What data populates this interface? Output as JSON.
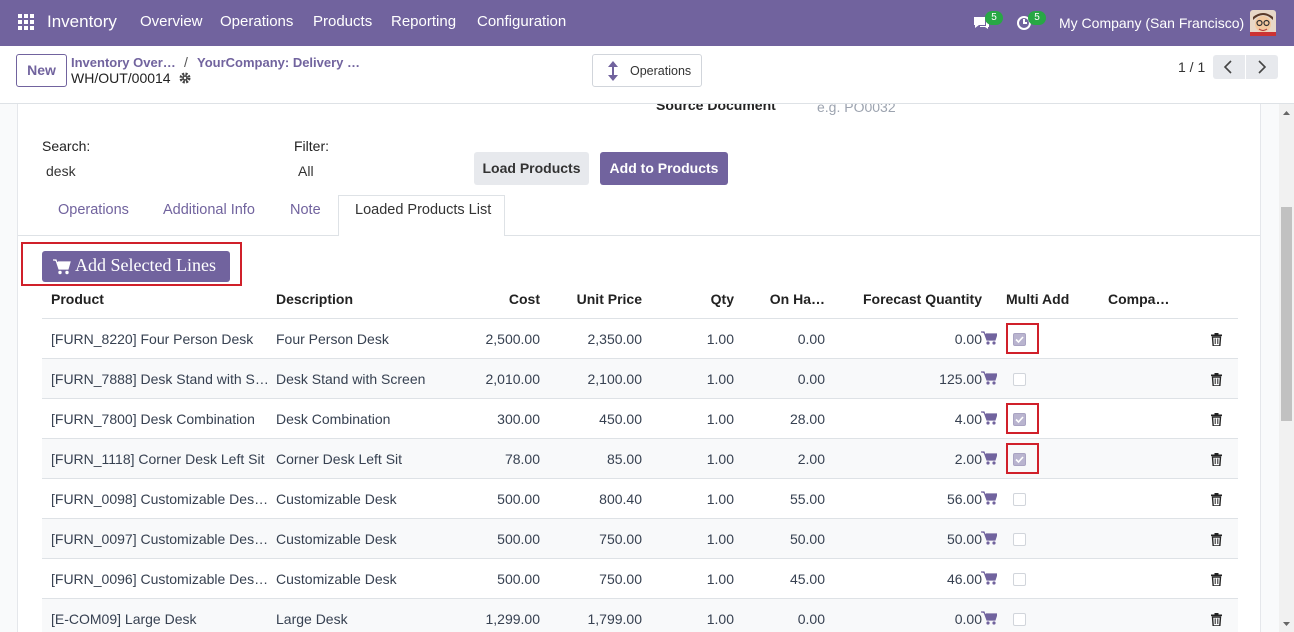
{
  "navbar": {
    "app": "Inventory",
    "menu": [
      "Overview",
      "Operations",
      "Products",
      "Reporting",
      "Configuration"
    ],
    "badges": [
      "5",
      "5"
    ],
    "company": "My Company (San Francisco)"
  },
  "control": {
    "new": "New",
    "breadcrumbs": [
      "Inventory Over…",
      "YourCompany: Delivery …"
    ],
    "record": "WH/OUT/00014",
    "action": "Operations",
    "pager": "1 / 1"
  },
  "form": {
    "source_label": "Source Document",
    "source_placeholder": "e.g. PO0032",
    "search_label": "Search:",
    "search_value": "desk",
    "filter_label": "Filter:",
    "filter_value": "All",
    "buttons": [
      "Load Products",
      "Add to Products"
    ],
    "tabs": [
      "Operations",
      "Additional Info",
      "Note",
      "Loaded Products List"
    ],
    "add_selected": "Add Selected Lines"
  },
  "table": {
    "headers": [
      "Product",
      "Description",
      "Cost",
      "Unit Price",
      "Qty",
      "On Ha…",
      "Forecast Quantity",
      "Multi Add",
      "Compa…"
    ],
    "rows": [
      {
        "cells": [
          "[FURN_8220] Four Person Desk",
          "Four Person Desk",
          "2,500.00",
          "2,350.00",
          "1.00",
          "0.00",
          "0.00"
        ],
        "checked": true
      },
      {
        "cells": [
          "[FURN_7888] Desk Stand with S…",
          "Desk Stand with Screen",
          "2,010.00",
          "2,100.00",
          "1.00",
          "0.00",
          "125.00"
        ],
        "checked": false
      },
      {
        "cells": [
          "[FURN_7800] Desk Combination",
          "Desk Combination",
          "300.00",
          "450.00",
          "1.00",
          "28.00",
          "4.00"
        ],
        "checked": true
      },
      {
        "cells": [
          "[FURN_1118] Corner Desk Left Sit",
          "Corner Desk Left Sit",
          "78.00",
          "85.00",
          "1.00",
          "2.00",
          "2.00"
        ],
        "checked": true
      },
      {
        "cells": [
          "[FURN_0098] Customizable Des…",
          "Customizable Desk",
          "500.00",
          "800.40",
          "1.00",
          "55.00",
          "56.00"
        ],
        "checked": false
      },
      {
        "cells": [
          "[FURN_0097] Customizable Des…",
          "Customizable Desk",
          "500.00",
          "750.00",
          "1.00",
          "50.00",
          "50.00"
        ],
        "checked": false
      },
      {
        "cells": [
          "[FURN_0096] Customizable Des…",
          "Customizable Desk",
          "500.00",
          "750.00",
          "1.00",
          "45.00",
          "46.00"
        ],
        "checked": false
      },
      {
        "cells": [
          "[E-COM09] Large Desk",
          "Large Desk",
          "1,299.00",
          "1,799.00",
          "1.00",
          "0.00",
          "0.00"
        ],
        "checked": false
      }
    ]
  }
}
